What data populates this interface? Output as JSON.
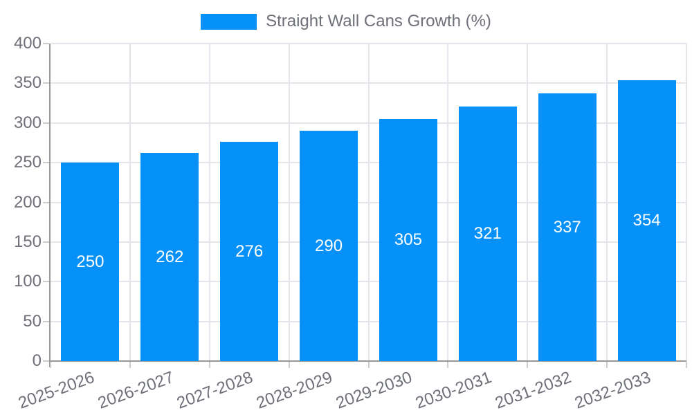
{
  "legend": {
    "label": "Straight Wall Cans Growth (%)"
  },
  "chart_data": {
    "type": "bar",
    "title": "",
    "series_name": "Straight Wall Cans Growth (%)",
    "categories": [
      "2025-2026",
      "2026-2027",
      "2027-2028",
      "2028-2029",
      "2029-2030",
      "2030-2031",
      "2031-2032",
      "2032-2033"
    ],
    "values": [
      250,
      262,
      276,
      290,
      305,
      321,
      337,
      354
    ],
    "xlabel": "",
    "ylabel": "",
    "ylim": [
      0,
      400
    ],
    "y_ticks": [
      0,
      50,
      100,
      150,
      200,
      250,
      300,
      350,
      400
    ],
    "grid": true,
    "legend_position": "top-center",
    "value_labels": "inside-center",
    "x_label_rotation_deg": -20,
    "colors": {
      "bar": "#0591f8",
      "axis_text": "#6e7079",
      "value_label": "#ffffff",
      "grid_line": "#e3e5ea",
      "axis_line": "#999999",
      "tick_line": "#cccccc"
    }
  }
}
